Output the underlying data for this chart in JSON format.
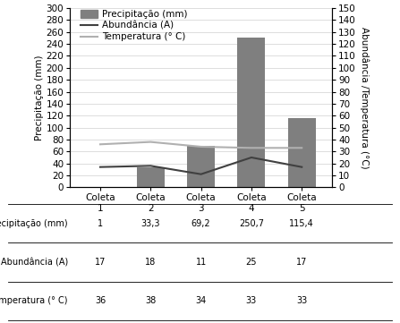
{
  "categories": [
    "Coleta\n1",
    "Coleta\n2",
    "Coleta\n3",
    "Coleta\n4",
    "Coleta\n5"
  ],
  "cat_labels": [
    "Coleta\n1",
    "Coleta\n2",
    "Coleta\n3",
    "Coleta\n4",
    "Coleta\n5"
  ],
  "precipitacao": [
    1,
    33.3,
    69.2,
    250.7,
    115.4
  ],
  "abundancia": [
    17,
    18,
    11,
    25,
    17
  ],
  "temperatura": [
    36,
    38,
    34,
    33,
    33
  ],
  "bar_color": "#7f7f7f",
  "abundancia_color": "#404040",
  "temperatura_color": "#b0b0b0",
  "ylabel_left": "Precipitação (mm)",
  "ylabel_right": "Abundância /Temperatura (°C)",
  "ylim_left": [
    0,
    300
  ],
  "ylim_right": [
    0,
    150
  ],
  "yticks_left": [
    0,
    20,
    40,
    60,
    80,
    100,
    120,
    140,
    160,
    180,
    200,
    220,
    240,
    260,
    280,
    300
  ],
  "yticks_right": [
    0,
    10,
    20,
    30,
    40,
    50,
    60,
    70,
    80,
    90,
    100,
    110,
    120,
    130,
    140,
    150
  ],
  "legend_precipitacao": "Precipitação (mm)",
  "legend_abundancia": "Abundância (A)",
  "legend_temperatura": "Temperatura (° C)",
  "table_rows": [
    "Precipitação (mm)",
    "Abundância (A)",
    "Temperatura (° C)"
  ],
  "table_data": [
    [
      "1",
      "33,3",
      "69,2",
      "250,7",
      "115,4"
    ],
    [
      "17",
      "18",
      "11",
      "25",
      "17"
    ],
    [
      "36",
      "38",
      "34",
      "33",
      "33"
    ]
  ],
  "background_color": "#ffffff",
  "font_size": 7.5,
  "legend_font_size": 7.5
}
